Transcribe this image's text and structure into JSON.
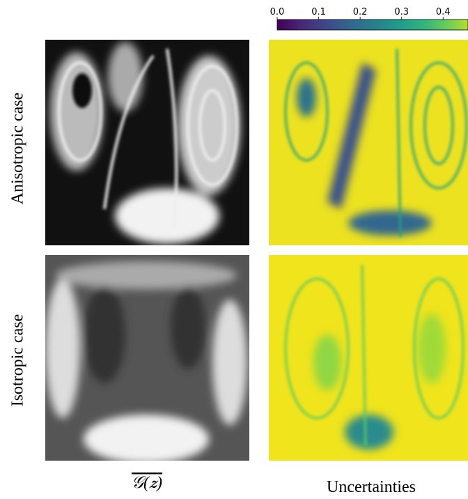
{
  "colorbar": {
    "cmap": "viridis",
    "clim": [
      0,
      0.46
    ],
    "ticks": [
      {
        "value": 0,
        "label": "0.0"
      },
      0.1,
      0.2,
      0.3,
      0.4
    ]
  },
  "rows": [
    {
      "label": "Anisotropic case"
    },
    {
      "label": "Isotropic case"
    }
  ],
  "columns": [
    {
      "label": "𝒢(𝒛)"
    },
    {
      "label": "Uncertainties"
    }
  ]
}
